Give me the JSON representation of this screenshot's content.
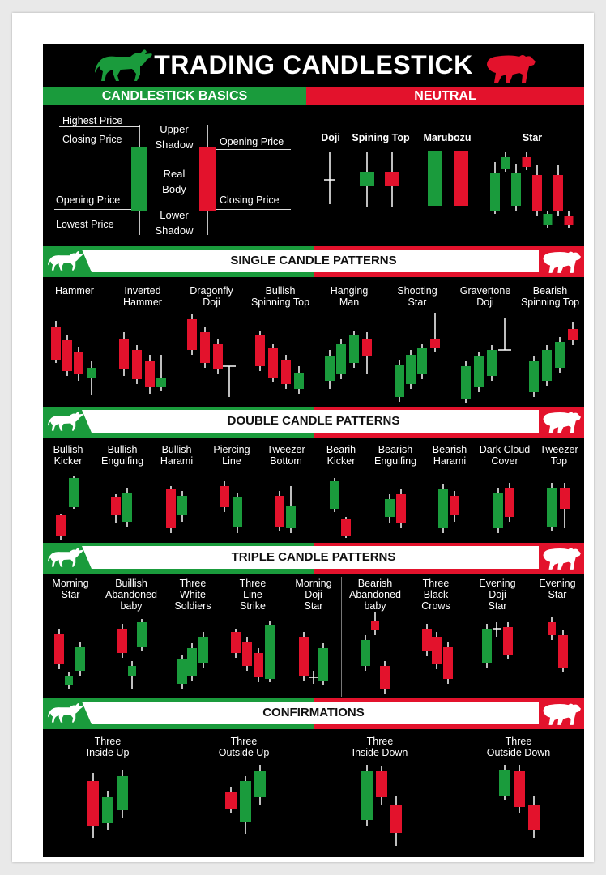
{
  "title": "TRADING CANDLESTICK",
  "headers": {
    "basics": "CANDLESTICK BASICS",
    "neutral": "NEUTRAL"
  },
  "colors": {
    "bull": "#1a9b3c",
    "bear": "#e3122c",
    "wick": "#ffffff",
    "background": "#000000"
  },
  "basics": {
    "highest_price": "Highest Price",
    "closing_price_left": "Closing Price",
    "opening_price_left": "Opening Price",
    "lowest_price": "Lowest Price",
    "upper_shadow": "Upper\nShadow",
    "real_body": "Real\nBody",
    "lower_shadow": "Lower\nShadow",
    "opening_price_right": "Opening Price",
    "closing_price_right": "Closing Price"
  },
  "neutral": [
    "Doji",
    "Spining Top",
    "Marubozu",
    "Star"
  ],
  "sections": {
    "single": "SINGLE CANDLE PATTERNS",
    "double": "DOUBLE CANDLE PATTERNS",
    "triple": "TRIPLE CANDLE PATTERNS",
    "confirm": "CONFIRMATIONS"
  },
  "single": {
    "bullish": [
      "Hammer",
      "Inverted\nHammer",
      "Dragonfly\nDoji",
      "Bullish\nSpinning Top"
    ],
    "bearish": [
      "Hanging\nMan",
      "Shooting\nStar",
      "Gravertone\nDoji",
      "Bearish\nSpinning Top"
    ]
  },
  "double": {
    "bullish": [
      "Bullish\nKicker",
      "Bullish\nEngulfing",
      "Bullish\nHarami",
      "Piercing\nLine",
      "Tweezer\nBottom"
    ],
    "bearish": [
      "Bearih\nKicker",
      "Bearish\nEngulfing",
      "Bearish\nHarami",
      "Dark Cloud\nCover",
      "Tweezer\nTop"
    ]
  },
  "triple": {
    "bullish": [
      "Morning\nStar",
      "Buillish\nAbandoned\nbaby",
      "Three\nWhite\nSoldiers",
      "Three\nLine\nStrike",
      "Morning\nDoji\nStar"
    ],
    "bearish": [
      "Bearish\nAbandoned\nbaby",
      "Three\nBlack\nCrows",
      "Evening\nDoji\nStar",
      "Evening\nStar"
    ]
  },
  "confirm": [
    "Three\nInside Up",
    "Three\nOutside Up",
    "Three\nInside Down",
    "Three\nOutside Down"
  ]
}
